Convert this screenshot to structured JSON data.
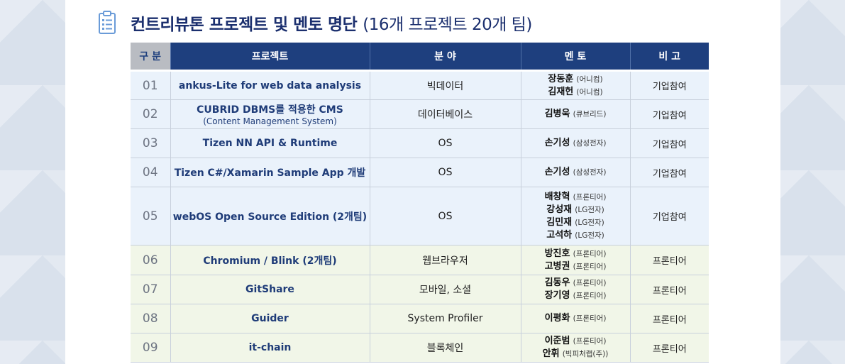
{
  "heading": {
    "title": "컨트리뷰톤 프로젝트 및 멘토 명단",
    "subtitle": "(16개 프로젝트 20개 팀)"
  },
  "columns": [
    "구 분",
    "프로젝트",
    "분 야",
    "멘 토",
    "비 고"
  ],
  "rows": [
    {
      "no": "01",
      "project": "ankus-Lite for web data analysis",
      "project_sub": "",
      "field": "빅데이터",
      "mentors": [
        {
          "name": "장동훈",
          "org": "(어니컴)"
        },
        {
          "name": "김재헌",
          "org": "(어니컴)"
        }
      ],
      "note": "기업참여",
      "tone": "blue"
    },
    {
      "no": "02",
      "project": "CUBRID DBMS를 적용한 CMS",
      "project_sub": "(Content Management System)",
      "field": "데이터베이스",
      "mentors": [
        {
          "name": "김병욱",
          "org": "(큐브리드)"
        }
      ],
      "note": "기업참여",
      "tone": "blue"
    },
    {
      "no": "03",
      "project": "Tizen NN API & Runtime",
      "project_sub": "",
      "field": "OS",
      "mentors": [
        {
          "name": "손기성",
          "org": "(삼성전자)"
        }
      ],
      "note": "기업참여",
      "tone": "blue"
    },
    {
      "no": "04",
      "project": "Tizen C#/Xamarin Sample App 개발",
      "project_sub": "",
      "field": "OS",
      "mentors": [
        {
          "name": "손기성",
          "org": "(삼성전자)"
        }
      ],
      "note": "기업참여",
      "tone": "blue"
    },
    {
      "no": "05",
      "project": "webOS Open Source Edition (2개팀)",
      "project_sub": "",
      "field": "OS",
      "mentors": [
        {
          "name": "배창혁",
          "org": "(프론티어)"
        },
        {
          "name": "강성재",
          "org": "(LG전자)"
        },
        {
          "name": "김민재",
          "org": "(LG전자)"
        },
        {
          "name": "고석하",
          "org": "(LG전자)"
        }
      ],
      "note": "기업참여",
      "tone": "blue"
    },
    {
      "no": "06",
      "project": "Chromium / Blink (2개팀)",
      "project_sub": "",
      "field": "웹브라우저",
      "mentors": [
        {
          "name": "방진호",
          "org": "(프론티어)"
        },
        {
          "name": "고병권",
          "org": "(프론티어)"
        }
      ],
      "note": "프론티어",
      "tone": "green"
    },
    {
      "no": "07",
      "project": "GitShare",
      "project_sub": "",
      "field": "모바일, 소셜",
      "mentors": [
        {
          "name": "김동우",
          "org": "(프론티어)"
        },
        {
          "name": "장기영",
          "org": "(프론티어)"
        }
      ],
      "note": "프론티어",
      "tone": "green"
    },
    {
      "no": "08",
      "project": "Guider",
      "project_sub": "",
      "field": "System Profiler",
      "mentors": [
        {
          "name": "이평화",
          "org": "(프론티어)"
        }
      ],
      "note": "프론티어",
      "tone": "green"
    },
    {
      "no": "09",
      "project": "it-chain",
      "project_sub": "",
      "field": "블록체인",
      "mentors": [
        {
          "name": "이준범",
          "org": "(프론티어)"
        },
        {
          "name": "안휘",
          "org": "(빅피처랩(주))"
        }
      ],
      "note": "프론티어",
      "tone": "green"
    }
  ]
}
